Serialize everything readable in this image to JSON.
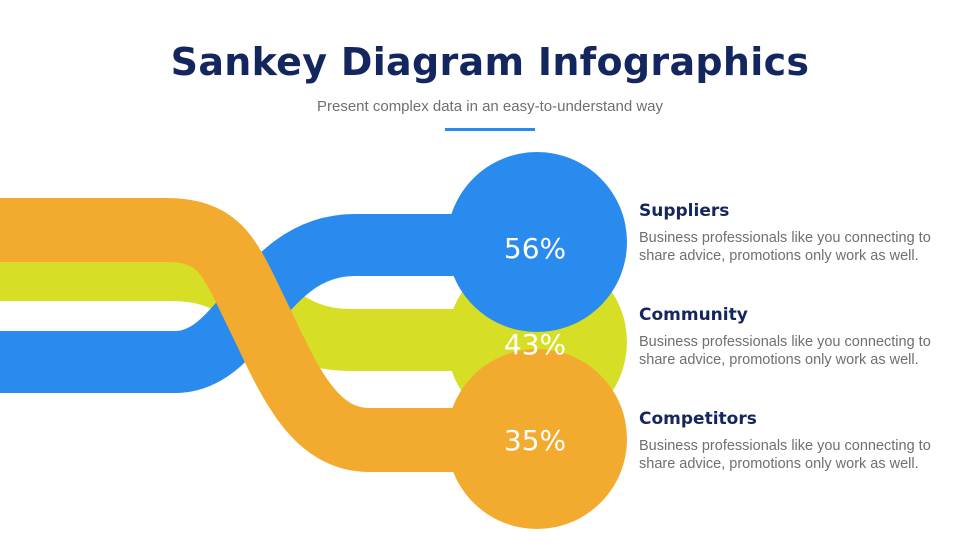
{
  "header": {
    "title": "Sankey Diagram Infographics",
    "subtitle": "Present complex data in an easy-to-understand way"
  },
  "colors": {
    "title": "#14265e",
    "accent_line": "#2a8bef",
    "suppliers": "#2a8bef",
    "community": "#d6df26",
    "competitors": "#f2ab2f",
    "body_text": "#6f6f6f"
  },
  "items": [
    {
      "name": "Suppliers",
      "percent": "56%",
      "description": "Business professionals like you connecting to share advice, promotions only work as well."
    },
    {
      "name": "Community",
      "percent": "43%",
      "description": "Business professionals like you connecting to share advice, promotions only work as well."
    },
    {
      "name": "Competitors",
      "percent": "35%",
      "description": "Business professionals like you connecting to share advice, promotions only work as well."
    }
  ]
}
